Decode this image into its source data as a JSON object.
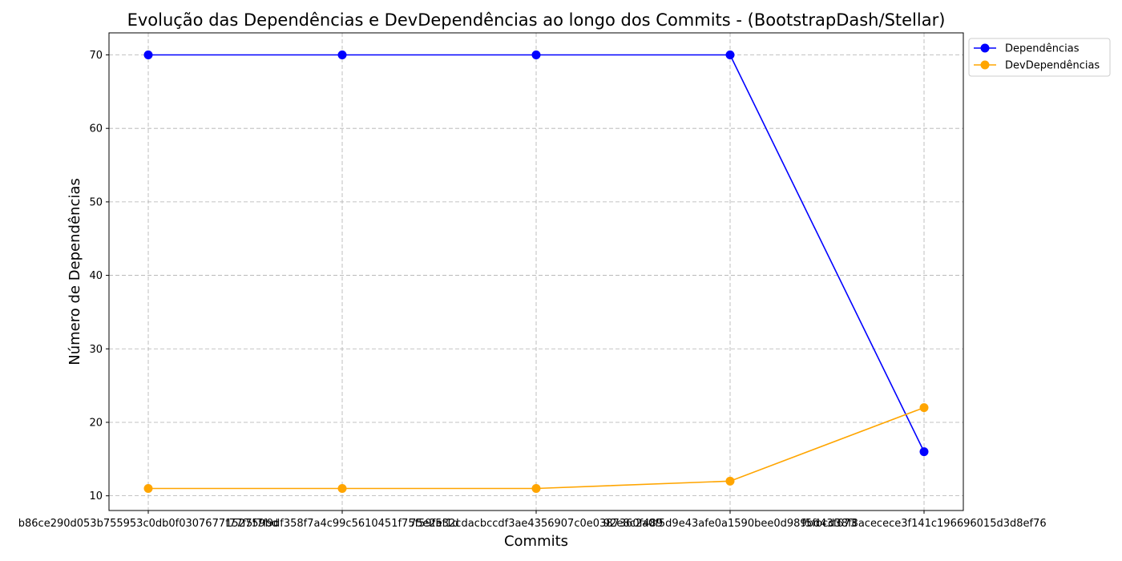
{
  "chart_data": {
    "type": "line",
    "title": "Evolução das Dependências e DevDependências ao longo dos Commits - (BootstrapDash/Stellar)",
    "xlabel": "Commits",
    "ylabel": "Número de Dependências",
    "categories": [
      "b86ce290d053b755953c0db0f0307677152759bd",
      "f77f5f7f9df358f7a4c99c5610451f75f59f5f1d",
      "75e2e32cdacbccdf3ae4356907c0e0387360f489",
      "92e8c2a0f5d9e43afe0a1590bee0d989bd43f673",
      "f5fbcd38f8acecece3f141c196696015d3d8ef76"
    ],
    "series": [
      {
        "name": "Dependências",
        "color": "#0000ff",
        "values": [
          70,
          70,
          70,
          70,
          16
        ]
      },
      {
        "name": "DevDependências",
        "color": "#ffa500",
        "values": [
          11,
          11,
          11,
          12,
          22
        ]
      }
    ],
    "yticks": [
      10,
      20,
      30,
      40,
      50,
      60,
      70
    ],
    "ylim": [
      8,
      73
    ],
    "grid": true,
    "legend_position": "upper-right-outside"
  }
}
